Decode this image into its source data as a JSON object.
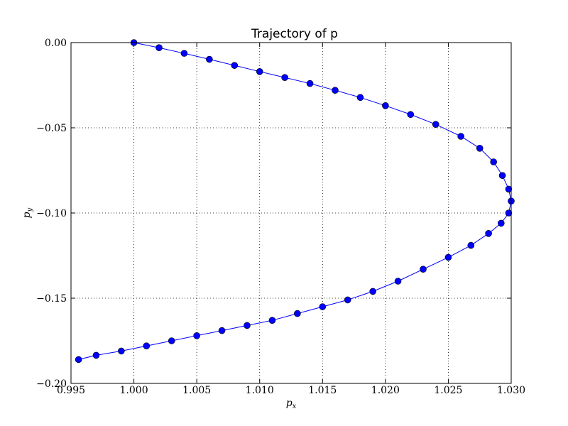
{
  "chart_data": {
    "type": "line",
    "title": "Trajectory of p",
    "x_label": {
      "base": "p",
      "sub": "x"
    },
    "y_label": {
      "base": "p",
      "sub": "y"
    },
    "grid": true,
    "xlim": [
      0.995,
      1.03
    ],
    "ylim": [
      -0.2,
      0
    ],
    "xticks": [
      {
        "value": 0.995,
        "label": "0.995"
      },
      {
        "value": 1.0,
        "label": "1.000"
      },
      {
        "value": 1.005,
        "label": "1.005"
      },
      {
        "value": 1.01,
        "label": "1.010"
      },
      {
        "value": 1.015,
        "label": "1.015"
      },
      {
        "value": 1.02,
        "label": "1.020"
      },
      {
        "value": 1.025,
        "label": "1.025"
      },
      {
        "value": 1.03,
        "label": "1.030"
      }
    ],
    "yticks": [
      {
        "value": 0,
        "label": "0.00"
      },
      {
        "value": -0.05,
        "label": "−0.05"
      },
      {
        "value": -0.1,
        "label": "−0.10"
      },
      {
        "value": -0.15,
        "label": "−0.15"
      },
      {
        "value": -0.2,
        "label": "−0.20"
      }
    ],
    "series": [
      {
        "color": "#0000ff",
        "x": [
          1.0,
          1.002,
          1.004,
          1.006,
          1.008,
          1.01,
          1.012,
          1.014,
          1.016,
          1.018,
          1.02,
          1.022,
          1.024,
          1.026,
          1.0275,
          1.0286,
          1.0293,
          1.0298,
          1.03,
          1.0298,
          1.0292,
          1.0282,
          1.0268,
          1.025,
          1.023,
          1.021,
          1.019,
          1.017,
          1.015,
          1.013,
          1.011,
          1.009,
          1.007,
          1.005,
          1.003,
          1.001,
          0.999,
          0.997,
          0.9956
        ],
        "values": [
          0,
          -0.003,
          -0.0063,
          -0.0098,
          -0.0134,
          -0.017,
          -0.0205,
          -0.024,
          -0.028,
          -0.0322,
          -0.037,
          -0.0422,
          -0.048,
          -0.055,
          -0.062,
          -0.07,
          -0.078,
          -0.086,
          -0.093,
          -0.1,
          -0.106,
          -0.112,
          -0.119,
          -0.126,
          -0.133,
          -0.14,
          -0.146,
          -0.151,
          -0.155,
          -0.159,
          -0.163,
          -0.166,
          -0.169,
          -0.172,
          -0.175,
          -0.178,
          -0.181,
          -0.1835,
          -0.186
        ]
      }
    ]
  }
}
